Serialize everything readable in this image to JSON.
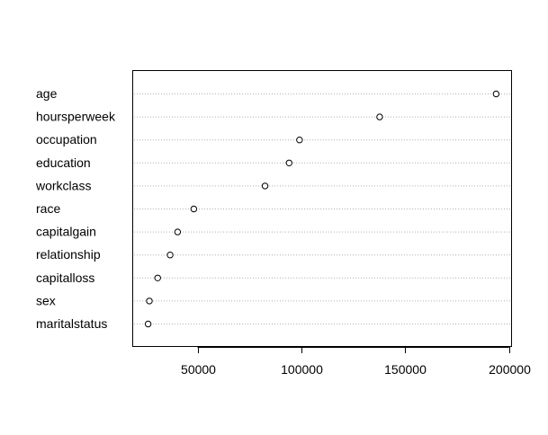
{
  "chart_data": {
    "type": "scatter",
    "subtype": "dotchart",
    "title": "",
    "xlabel": "",
    "ylabel": "",
    "xlim": [
      19000,
      201000
    ],
    "xticks": [
      50000,
      100000,
      150000,
      200000
    ],
    "grid": "horizontal-dotted",
    "legend": "none",
    "categories": [
      "age",
      "hoursperweek",
      "occupation",
      "education",
      "workclass",
      "race",
      "capitalgain",
      "relationship",
      "capitalloss",
      "sex",
      "maritalstatus"
    ],
    "values": [
      193800,
      137700,
      99100,
      94100,
      82500,
      48200,
      40400,
      36800,
      30800,
      26800,
      26200
    ],
    "colors": {
      "point_fill": "#ffffff",
      "point_stroke": "#000000",
      "grid": "#b0b0b0",
      "axis": "#000000"
    }
  }
}
